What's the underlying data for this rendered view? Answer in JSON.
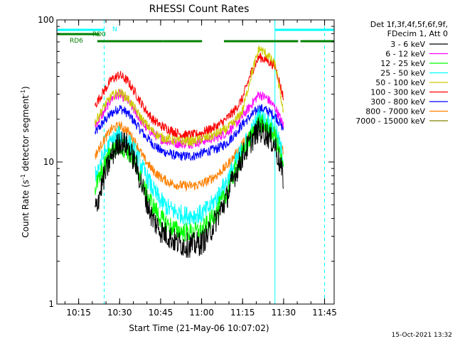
{
  "chart_data": {
    "type": "line",
    "title": "RHESSI Count Rates",
    "xlabel": "Start Time (21-May-06 10:07:02)",
    "ylabel": "Count Rate (s⁻¹ detector segment⁻¹)",
    "ylabel_main": "Count Rate (s",
    "ylabel_sup1": "-1",
    "ylabel_mid": " detector segment",
    "ylabel_sup2": "-1",
    "ylabel_end": ")",
    "y_scale": "log",
    "ylim": [
      1,
      100
    ],
    "xlim": [
      "10:07:02",
      "11:48:30"
    ],
    "x_ticks": [
      "10:15",
      "10:30",
      "10:45",
      "11:00",
      "11:15",
      "11:30",
      "11:45"
    ],
    "y_ticks": [
      "1",
      "10",
      "100"
    ],
    "grid": false,
    "legend_position": "right",
    "legend_header": [
      "Det 1f,3f,4f,5f,6f,9f,",
      "FDecim 1, Att 0"
    ],
    "time_points": [
      "10:21",
      "10:24",
      "10:27",
      "10:30",
      "10:33",
      "10:36",
      "10:39",
      "10:42",
      "10:45",
      "10:48",
      "10:51",
      "10:54",
      "10:57",
      "11:00",
      "11:03",
      "11:06",
      "11:09",
      "11:12",
      "11:15",
      "11:18",
      "11:21",
      "11:24",
      "11:27",
      "11:30"
    ],
    "series": [
      {
        "name": "3 - 6 keV",
        "color": "#000000",
        "values": [
          4.5,
          7.5,
          11,
          14,
          13,
          9.5,
          6,
          4,
          3.3,
          3,
          2.7,
          2.6,
          2.6,
          2.7,
          3.2,
          4.2,
          5.5,
          8,
          11,
          14,
          17,
          15.5,
          13,
          7.5
        ]
      },
      {
        "name": "6 - 12 keV",
        "color": "#ff00ff",
        "values": [
          18,
          22,
          28,
          30,
          27,
          22,
          18,
          16,
          14.5,
          14,
          13.5,
          13.5,
          13.5,
          14,
          14.5,
          15,
          16,
          18,
          21,
          25,
          30,
          28,
          24,
          18
        ]
      },
      {
        "name": "12 - 25 keV",
        "color": "#00ff00",
        "values": [
          6.5,
          9,
          12,
          13,
          12,
          9.5,
          6.5,
          5,
          4,
          3.6,
          3.3,
          3.2,
          3.2,
          3.3,
          3.8,
          4.7,
          6,
          8.5,
          11.5,
          15,
          19,
          17.5,
          15,
          9
        ]
      },
      {
        "name": "25 - 50 keV",
        "color": "#00ffff",
        "values": [
          8,
          11,
          14,
          15.5,
          14,
          11.5,
          8.5,
          6.5,
          5.3,
          4.7,
          4.4,
          4.2,
          4.2,
          4.3,
          4.8,
          5.8,
          7.2,
          9.5,
          12.5,
          16,
          21,
          19,
          17,
          10.5
        ]
      },
      {
        "name": "50 - 100 keV",
        "color": "#cccc00",
        "values": [
          19,
          24,
          29,
          31,
          28,
          23,
          19,
          16.5,
          15,
          14.5,
          14,
          14,
          14,
          14.5,
          15,
          16,
          17,
          19,
          23,
          40,
          63,
          57,
          48,
          22
        ]
      },
      {
        "name": "100 - 300 keV",
        "color": "#ff0000",
        "values": [
          25,
          31,
          38,
          41,
          37,
          30,
          24,
          20,
          18,
          17,
          16,
          15.5,
          15.5,
          16,
          17,
          18,
          20,
          23,
          28,
          42,
          55,
          52,
          47,
          28
        ]
      },
      {
        "name": "300 - 800 keV",
        "color": "#0000ff",
        "values": [
          16,
          19,
          22,
          24,
          22,
          18.5,
          15.5,
          13.5,
          12,
          11.5,
          11,
          11,
          11,
          11.5,
          12,
          12.5,
          13.5,
          15.5,
          18.5,
          21,
          24,
          23,
          21,
          17
        ]
      },
      {
        "name": "800 - 7000 keV",
        "color": "#ff8000",
        "values": [
          11,
          14,
          17,
          18,
          16.5,
          13.5,
          10.5,
          8.8,
          7.8,
          7.2,
          6.9,
          6.8,
          6.8,
          7,
          7.5,
          8.2,
          9.3,
          11,
          13.5,
          16,
          18.5,
          17.5,
          16,
          12
        ]
      },
      {
        "name": "7000 - 15000 keV",
        "color": "#808000",
        "values": []
      }
    ],
    "annotations": [
      {
        "label": "N",
        "color": "#00ffff",
        "bar": [
          "10:07:02",
          "10:24:20"
        ]
      },
      {
        "label": "RD0",
        "color": "#008000",
        "bar": [
          "10:07:02",
          "10:22:40"
        ]
      },
      {
        "label": "RD6",
        "color": "#008000",
        "bars": [
          [
            "10:21:50",
            "10:45:50"
          ],
          [
            "10:45:50",
            "11:00:10"
          ],
          [
            "11:08:10",
            "11:35:20"
          ],
          [
            "11:36:10",
            "11:48:30"
          ]
        ]
      },
      {
        "label": "",
        "color": "#00ffff",
        "bar": [
          "11:26:50",
          "11:48:30"
        ]
      }
    ],
    "vertical_lines": [
      {
        "time": "10:07:02",
        "color": "#00ffff",
        "style": "solid"
      },
      {
        "time": "10:24:20",
        "color": "#00ffff",
        "style": "dashed"
      },
      {
        "time": "11:26:50",
        "color": "#00ffff",
        "style": "solid"
      },
      {
        "time": "11:45:00",
        "color": "#00ffff",
        "style": "dashed"
      }
    ]
  },
  "footer": "15-Oct-2021 13:32"
}
